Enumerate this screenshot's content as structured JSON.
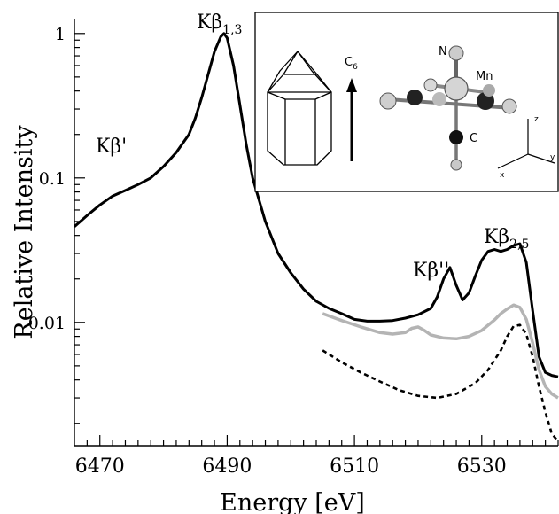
{
  "chart_data": {
    "type": "line",
    "xlabel": "Energy [eV]",
    "ylabel": "Relative Intensity",
    "xlim": [
      6466,
      6542
    ],
    "ylim": [
      0.0014,
      1.25
    ],
    "y_scale": "log",
    "x_ticks": [
      "6470",
      "6490",
      "6510",
      "6530"
    ],
    "x_tick_values": [
      6470,
      6490,
      6510,
      6530
    ],
    "y_ticks": [
      "1",
      "0.1",
      "0.01"
    ],
    "y_tick_values": [
      1,
      0.1,
      0.01
    ],
    "grid": false,
    "legend": "none",
    "annotations": [
      {
        "base": "Kβ",
        "sub": "1,3",
        "sup": ""
      },
      {
        "base": "Kβ'",
        "sub": "",
        "sup": ""
      },
      {
        "base": "Kβ''",
        "sub": "",
        "sup": ""
      },
      {
        "base": "Kβ",
        "sub": "2,5",
        "sup": ""
      }
    ],
    "series": [
      {
        "style": "solid-black",
        "color": "#000000",
        "x": [
          6466,
          6468,
          6470,
          6472,
          6474,
          6476,
          6478,
          6480,
          6482,
          6484,
          6485,
          6486,
          6487,
          6488,
          6489,
          6489.5,
          6490,
          6491,
          6492,
          6493,
          6494,
          6496,
          6498,
          6500,
          6502,
          6504,
          6506,
          6508,
          6510,
          6512,
          6514,
          6516,
          6518,
          6520,
          6522,
          6523,
          6524,
          6525,
          6526,
          6527,
          6528,
          6529,
          6530,
          6531,
          6532,
          6533,
          6534,
          6535,
          6536,
          6537,
          6538,
          6539,
          6540,
          6541,
          6542
        ],
        "y": [
          0.046,
          0.055,
          0.065,
          0.075,
          0.082,
          0.09,
          0.1,
          0.12,
          0.15,
          0.2,
          0.26,
          0.36,
          0.52,
          0.75,
          0.95,
          1.0,
          0.93,
          0.6,
          0.32,
          0.17,
          0.1,
          0.05,
          0.03,
          0.022,
          0.017,
          0.014,
          0.0125,
          0.0115,
          0.0105,
          0.0102,
          0.0102,
          0.0103,
          0.0107,
          0.0113,
          0.0125,
          0.015,
          0.02,
          0.024,
          0.018,
          0.0143,
          0.016,
          0.021,
          0.027,
          0.031,
          0.032,
          0.031,
          0.032,
          0.034,
          0.035,
          0.026,
          0.012,
          0.0058,
          0.0045,
          0.0043,
          0.0042
        ]
      },
      {
        "style": "solid-gray",
        "color": "#b4b4b4",
        "x": [
          6505,
          6508,
          6511,
          6514,
          6516,
          6518,
          6519,
          6520,
          6521,
          6522,
          6524,
          6526,
          6528,
          6530,
          6532,
          6533,
          6534,
          6535,
          6536,
          6537,
          6538,
          6539,
          6540,
          6541,
          6542
        ],
        "y": [
          0.0115,
          0.0103,
          0.0093,
          0.0085,
          0.0083,
          0.0085,
          0.0091,
          0.0093,
          0.0088,
          0.0082,
          0.0078,
          0.0077,
          0.008,
          0.0088,
          0.0104,
          0.0115,
          0.0124,
          0.0132,
          0.0127,
          0.0105,
          0.0072,
          0.0047,
          0.0036,
          0.0032,
          0.003
        ]
      },
      {
        "style": "dotted-black",
        "color": "#000000",
        "x": [
          6505,
          6508,
          6511,
          6514,
          6517,
          6520,
          6523,
          6526,
          6529,
          6531,
          6533,
          6534,
          6535,
          6536,
          6537,
          6538,
          6539,
          6540,
          6541,
          6542
        ],
        "y": [
          0.0064,
          0.0053,
          0.0045,
          0.0039,
          0.0034,
          0.0031,
          0.003,
          0.0032,
          0.0038,
          0.0047,
          0.0064,
          0.008,
          0.0094,
          0.0096,
          0.0083,
          0.0058,
          0.0036,
          0.0024,
          0.0017,
          0.0015
        ]
      }
    ],
    "inset": {
      "labels": {
        "c6": "C",
        "c6_sub": "6",
        "n": "N",
        "mn": "Mn",
        "c": "C",
        "ax_z": "z",
        "ax_x": "x",
        "ax_y": "y"
      }
    }
  }
}
